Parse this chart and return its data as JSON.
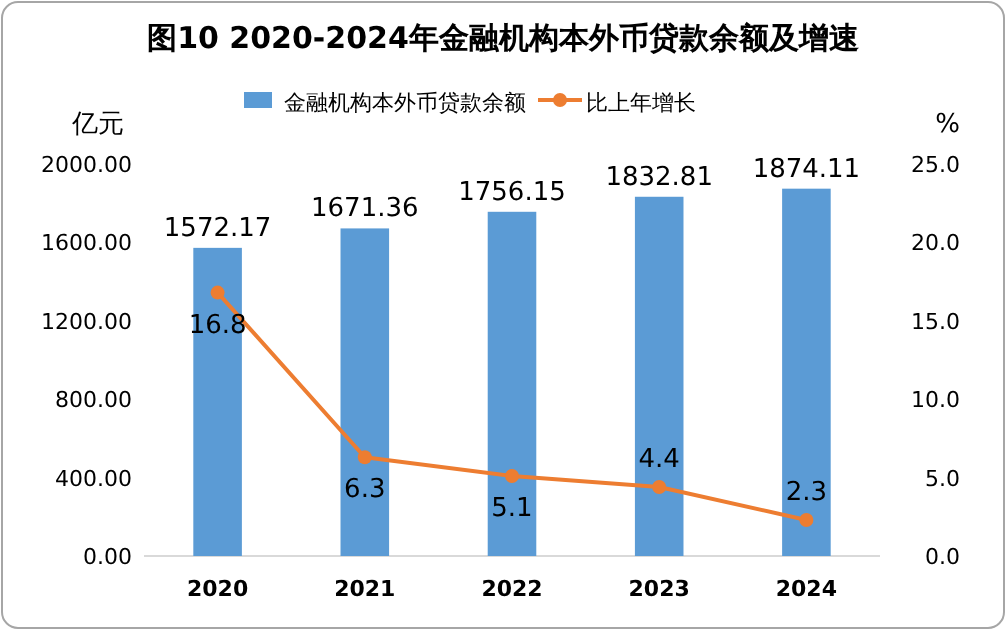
{
  "chart_data": {
    "type": "bar",
    "title": "图10  2020-2024年金融机构本外币贷款余额及增速",
    "ylabel": "亿元",
    "y2label": "%",
    "categories": [
      "2020",
      "2021",
      "2022",
      "2023",
      "2024"
    ],
    "series": [
      {
        "name": "金融机构本外币贷款余额",
        "color": "#5b9bd5",
        "values": [
          1572.17,
          1671.36,
          1756.15,
          1832.81,
          1874.11
        ]
      },
      {
        "name": "比上年增长",
        "type": "line",
        "axis": "y2",
        "color": "#ed7d31",
        "values": [
          16.8,
          6.3,
          5.1,
          4.4,
          2.3
        ]
      }
    ],
    "ylim": [
      0,
      2000
    ],
    "yticks": [
      {
        "value": 0,
        "label": "0.00"
      },
      {
        "value": 400,
        "label": "400.00"
      },
      {
        "value": 800,
        "label": "800.00"
      },
      {
        "value": 1200,
        "label": "1200.00"
      },
      {
        "value": 1600,
        "label": "1600.00"
      },
      {
        "value": 2000,
        "label": "2000.00"
      }
    ],
    "y2lim": [
      0,
      25
    ],
    "y2ticks": [
      {
        "value": 0,
        "label": "0.0"
      },
      {
        "value": 5,
        "label": "5.0"
      },
      {
        "value": 10,
        "label": "10.0"
      },
      {
        "value": 15,
        "label": "15.0"
      },
      {
        "value": 20,
        "label": "20.0"
      },
      {
        "value": 25,
        "label": "25.0"
      }
    ],
    "data_labels": true,
    "legend": "top",
    "marker": "circle"
  }
}
